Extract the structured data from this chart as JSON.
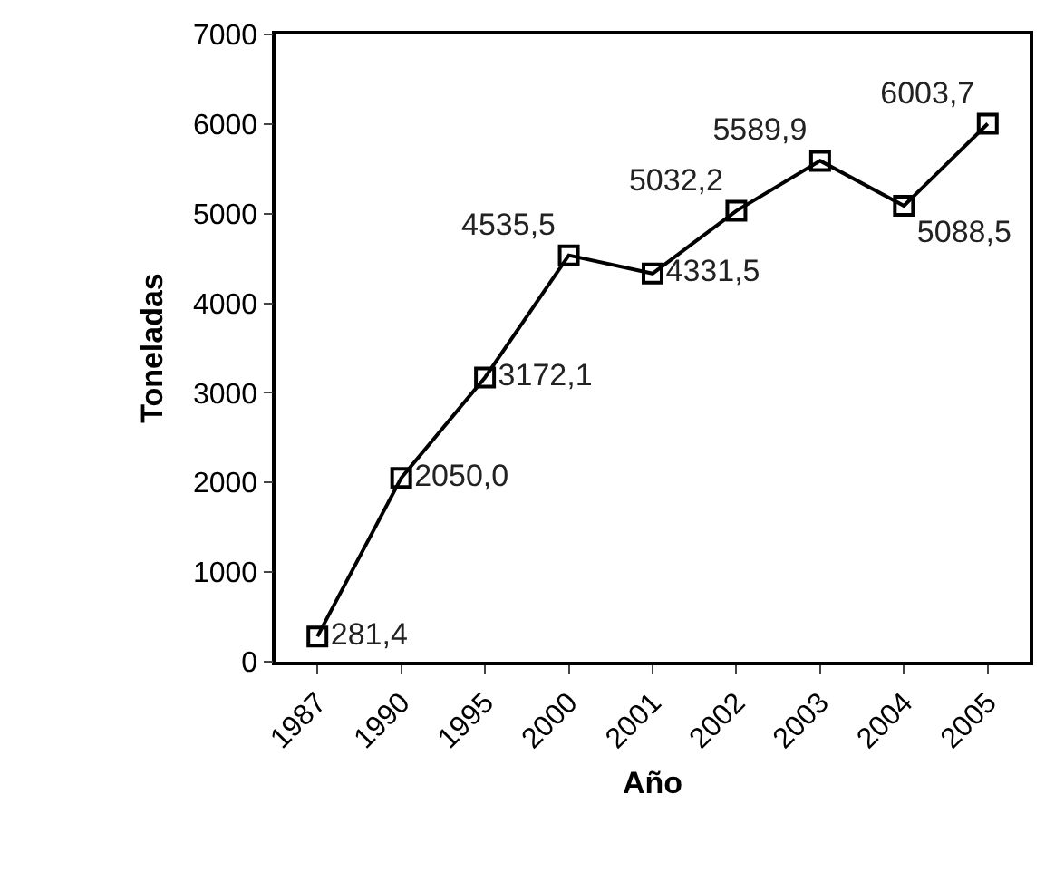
{
  "chart_data": {
    "type": "line",
    "xlabel": "Año",
    "ylabel": "Toneladas",
    "categories": [
      "1987",
      "1990",
      "1995",
      "2000",
      "2001",
      "2002",
      "2003",
      "2004",
      "2005"
    ],
    "values": [
      281.4,
      2050.0,
      3172.1,
      4535.5,
      4331.5,
      5032.2,
      5589.9,
      5088.5,
      6003.7
    ],
    "value_labels": [
      "281,4",
      "2050,0",
      "3172,1",
      "4535,5",
      "4331,5",
      "5032,2",
      "5589,9",
      "5088,5",
      "6003,7"
    ],
    "color": "#000000",
    "marker": "square",
    "line_style": "solid",
    "ylim": [
      0,
      7000
    ],
    "yticks": [
      0,
      1000,
      2000,
      3000,
      4000,
      5000,
      6000,
      7000
    ]
  }
}
